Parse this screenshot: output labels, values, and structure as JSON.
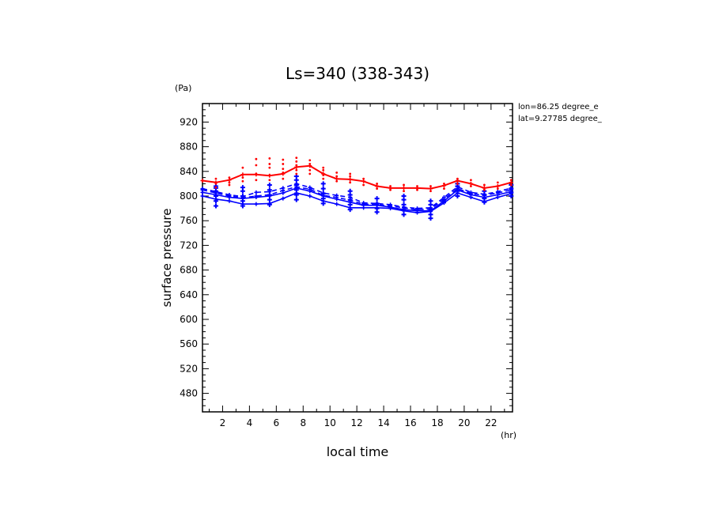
{
  "chart_data": {
    "type": "line",
    "title": "Ls=340 (338-343)",
    "xlabel": "local time",
    "xunit": "(hr)",
    "ylabel": "surface pressure",
    "yunit": "(Pa)",
    "annotations": [
      "lon=86.25 degree_e",
      "lat=9.27785 degree_"
    ],
    "xlim": [
      0.5,
      23.6
    ],
    "ylim": [
      450,
      950
    ],
    "x_ticks": [
      2,
      4,
      6,
      8,
      10,
      12,
      14,
      16,
      18,
      20,
      22
    ],
    "y_ticks": [
      480,
      520,
      560,
      600,
      640,
      680,
      720,
      760,
      800,
      840,
      880,
      920
    ],
    "grid": false,
    "legend": "none",
    "colors": {
      "red": "#ff0000",
      "blue": "#0000ff",
      "axis": "#000000"
    },
    "x": [
      0.5,
      1.5,
      2.5,
      3.5,
      4.5,
      5.5,
      6.5,
      7.5,
      8.5,
      9.5,
      10.5,
      11.5,
      12.5,
      13.5,
      14.5,
      15.5,
      16.5,
      17.5,
      18.5,
      19.5,
      20.5,
      21.5,
      22.5,
      23.5
    ],
    "series": [
      {
        "color": "#ff0000",
        "style": "solid",
        "values": [
          825,
          822,
          826,
          835,
          835,
          833,
          836,
          847,
          849,
          836,
          828,
          827,
          824,
          816,
          813,
          813,
          813,
          812,
          817,
          825,
          820,
          813,
          816,
          822
        ]
      },
      {
        "color": "#0000ff",
        "style": "dashed",
        "values": [
          812,
          807,
          802,
          799,
          806,
          807,
          813,
          820,
          814,
          805,
          801,
          798,
          789,
          788,
          786,
          782,
          780,
          781,
          798,
          815,
          806,
          803,
          807,
          813
        ]
      },
      {
        "color": "#0000ff",
        "style": "dashed",
        "values": [
          810,
          805,
          800,
          797,
          800,
          802,
          809,
          815,
          811,
          801,
          798,
          793,
          787,
          786,
          784,
          781,
          778,
          779,
          795,
          812,
          804,
          801,
          805,
          810
        ]
      },
      {
        "color": "#0000ff",
        "style": "solid",
        "values": [
          806,
          802,
          798,
          796,
          798,
          800,
          805,
          813,
          808,
          800,
          795,
          790,
          785,
          785,
          782,
          778,
          776,
          776,
          792,
          810,
          802,
          798,
          802,
          807
        ]
      },
      {
        "color": "#0000ff",
        "style": "solid",
        "values": [
          800,
          795,
          792,
          787,
          787,
          788,
          796,
          805,
          800,
          792,
          787,
          781,
          781,
          781,
          780,
          776,
          773,
          775,
          789,
          805,
          798,
          791,
          798,
          804
        ]
      }
    ],
    "scatter_red": [
      [
        1.5,
        814
      ],
      [
        1.5,
        820
      ],
      [
        1.5,
        828
      ],
      [
        2.5,
        818
      ],
      [
        2.5,
        822
      ],
      [
        2.5,
        830
      ],
      [
        3.5,
        824
      ],
      [
        3.5,
        830
      ],
      [
        3.5,
        846
      ],
      [
        4.5,
        826
      ],
      [
        4.5,
        836
      ],
      [
        4.5,
        850
      ],
      [
        4.5,
        860
      ],
      [
        5.5,
        826
      ],
      [
        5.5,
        834
      ],
      [
        5.5,
        846
      ],
      [
        5.5,
        852
      ],
      [
        5.5,
        861
      ],
      [
        6.5,
        828
      ],
      [
        6.5,
        838
      ],
      [
        6.5,
        844
      ],
      [
        6.5,
        852
      ],
      [
        6.5,
        859
      ],
      [
        7.5,
        836
      ],
      [
        7.5,
        842
      ],
      [
        7.5,
        850
      ],
      [
        7.5,
        856
      ],
      [
        7.5,
        862
      ],
      [
        8.5,
        836
      ],
      [
        8.5,
        842
      ],
      [
        8.5,
        852
      ],
      [
        8.5,
        858
      ],
      [
        9.5,
        828
      ],
      [
        9.5,
        834
      ],
      [
        9.5,
        842
      ],
      [
        9.5,
        846
      ],
      [
        10.5,
        824
      ],
      [
        10.5,
        832
      ],
      [
        10.5,
        838
      ],
      [
        11.5,
        822
      ],
      [
        11.5,
        832
      ],
      [
        11.5,
        836
      ],
      [
        12.5,
        818
      ],
      [
        12.5,
        828
      ],
      [
        13.5,
        812
      ],
      [
        13.5,
        820
      ],
      [
        14.5,
        810
      ],
      [
        14.5,
        816
      ],
      [
        15.5,
        808
      ],
      [
        15.5,
        818
      ],
      [
        16.5,
        810
      ],
      [
        16.5,
        816
      ],
      [
        17.5,
        808
      ],
      [
        17.5,
        816
      ],
      [
        18.5,
        812
      ],
      [
        18.5,
        820
      ],
      [
        19.5,
        820
      ],
      [
        19.5,
        828
      ],
      [
        20.5,
        816
      ],
      [
        20.5,
        826
      ],
      [
        21.5,
        810
      ],
      [
        21.5,
        818
      ],
      [
        22.5,
        812
      ],
      [
        22.5,
        822
      ],
      [
        23.5,
        818
      ],
      [
        23.5,
        826
      ]
    ],
    "scatter_blue": [
      [
        1.5,
        784
      ],
      [
        1.5,
        792
      ],
      [
        1.5,
        800
      ],
      [
        1.5,
        808
      ],
      [
        1.5,
        813
      ],
      [
        1.5,
        816
      ],
      [
        3.5,
        784
      ],
      [
        3.5,
        792
      ],
      [
        3.5,
        800
      ],
      [
        3.5,
        808
      ],
      [
        3.5,
        814
      ],
      [
        5.5,
        786
      ],
      [
        5.5,
        794
      ],
      [
        5.5,
        802
      ],
      [
        5.5,
        810
      ],
      [
        5.5,
        818
      ],
      [
        7.5,
        794
      ],
      [
        7.5,
        802
      ],
      [
        7.5,
        810
      ],
      [
        7.5,
        818
      ],
      [
        7.5,
        826
      ],
      [
        7.5,
        832
      ],
      [
        9.5,
        788
      ],
      [
        9.5,
        796
      ],
      [
        9.5,
        804
      ],
      [
        9.5,
        812
      ],
      [
        9.5,
        820
      ],
      [
        11.5,
        778
      ],
      [
        11.5,
        786
      ],
      [
        11.5,
        794
      ],
      [
        11.5,
        802
      ],
      [
        11.5,
        808
      ],
      [
        13.5,
        774
      ],
      [
        13.5,
        780
      ],
      [
        13.5,
        788
      ],
      [
        13.5,
        796
      ],
      [
        15.5,
        770
      ],
      [
        15.5,
        778
      ],
      [
        15.5,
        786
      ],
      [
        15.5,
        794
      ],
      [
        15.5,
        800
      ],
      [
        17.5,
        764
      ],
      [
        17.5,
        770
      ],
      [
        17.5,
        778
      ],
      [
        17.5,
        786
      ],
      [
        17.5,
        792
      ],
      [
        19.5,
        800
      ],
      [
        19.5,
        808
      ],
      [
        19.5,
        816
      ],
      [
        19.5,
        820
      ],
      [
        21.5,
        790
      ],
      [
        21.5,
        796
      ],
      [
        21.5,
        802
      ],
      [
        21.5,
        808
      ],
      [
        23.5,
        800
      ],
      [
        23.5,
        806
      ],
      [
        23.5,
        812
      ],
      [
        23.5,
        818
      ]
    ]
  }
}
